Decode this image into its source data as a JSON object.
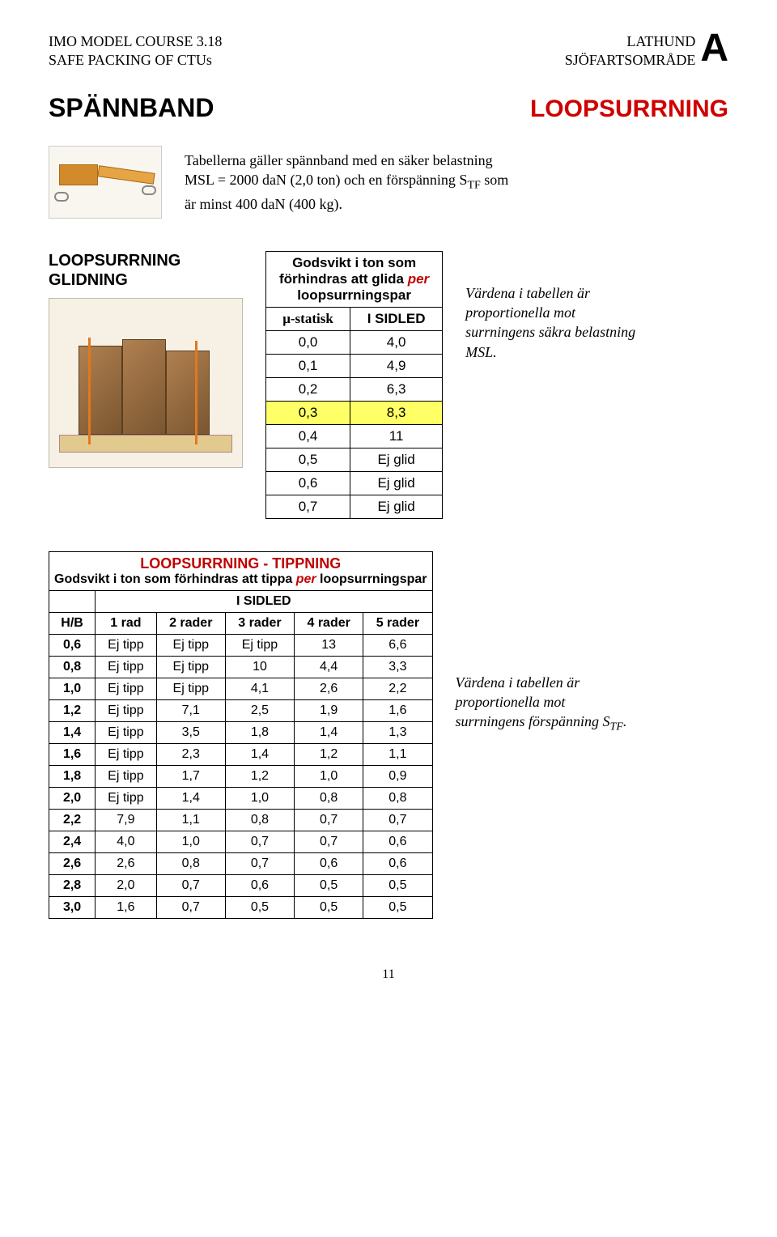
{
  "header": {
    "course_line1": "IMO MODEL COURSE 3.18",
    "course_line2": "SAFE PACKING OF CTUs",
    "lathund": "LATHUND",
    "area": "SJÖFARTSOMRÅDE",
    "big_letter": "A"
  },
  "titles": {
    "main": "SPÄNNBAND",
    "topic": "LOOPSURRNING"
  },
  "intro": {
    "l1": "Tabellerna gäller spännband med en säker belastning",
    "l2a": "MSL = 2000 daN (2,0 ton) och en förspänning S",
    "l2_sub": "TF",
    "l2b": " som",
    "l3": "är minst 400 daN (400 kg)."
  },
  "glid": {
    "section_title_l1": "LOOPSURRNING",
    "section_title_l2": "GLIDNING",
    "caption_l1": "Godsvikt i ton som",
    "caption_l2a": "förhindras att glida ",
    "caption_l2b": "per",
    "caption_l3": "loopsurrningspar",
    "col1": "μ-statisk",
    "col2": "I SIDLED",
    "rows": [
      {
        "m": "0,0",
        "v": "4,0"
      },
      {
        "m": "0,1",
        "v": "4,9"
      },
      {
        "m": "0,2",
        "v": "6,3"
      },
      {
        "m": "0,3",
        "v": "8,3"
      },
      {
        "m": "0,4",
        "v": "11"
      },
      {
        "m": "0,5",
        "v": "Ej glid"
      },
      {
        "m": "0,6",
        "v": "Ej glid"
      },
      {
        "m": "0,7",
        "v": "Ej glid"
      }
    ],
    "highlight_index": 3,
    "note": "Värdena i tabellen är proportionella mot surrningens säkra belastning MSL."
  },
  "tip": {
    "title": "LOOPSURRNING - TIPPNING",
    "sub_a": "Godsvikt i ton som förhindras att tippa ",
    "sub_b": "per",
    "sub_c": " loopsurrningspar",
    "band_header": "I SIDLED",
    "cols": [
      "H/B",
      "1 rad",
      "2 rader",
      "3 rader",
      "4 rader",
      "5 rader"
    ],
    "rows": [
      [
        "0,6",
        "Ej tipp",
        "Ej tipp",
        "Ej tipp",
        "13",
        "6,6"
      ],
      [
        "0,8",
        "Ej tipp",
        "Ej tipp",
        "10",
        "4,4",
        "3,3"
      ],
      [
        "1,0",
        "Ej tipp",
        "Ej tipp",
        "4,1",
        "2,6",
        "2,2"
      ],
      [
        "1,2",
        "Ej tipp",
        "7,1",
        "2,5",
        "1,9",
        "1,6"
      ],
      [
        "1,4",
        "Ej tipp",
        "3,5",
        "1,8",
        "1,4",
        "1,3"
      ],
      [
        "1,6",
        "Ej tipp",
        "2,3",
        "1,4",
        "1,2",
        "1,1"
      ],
      [
        "1,8",
        "Ej tipp",
        "1,7",
        "1,2",
        "1,0",
        "0,9"
      ],
      [
        "2,0",
        "Ej tipp",
        "1,4",
        "1,0",
        "0,8",
        "0,8"
      ],
      [
        "2,2",
        "7,9",
        "1,1",
        "0,8",
        "0,7",
        "0,7"
      ],
      [
        "2,4",
        "4,0",
        "1,0",
        "0,7",
        "0,7",
        "0,6"
      ],
      [
        "2,6",
        "2,6",
        "0,8",
        "0,7",
        "0,6",
        "0,6"
      ],
      [
        "2,8",
        "2,0",
        "0,7",
        "0,6",
        "0,5",
        "0,5"
      ],
      [
        "3,0",
        "1,6",
        "0,7",
        "0,5",
        "0,5",
        "0,5"
      ]
    ],
    "note_a": "Värdena i tabellen är proportionella mot surrningens förspänning S",
    "note_sub": "TF",
    "note_b": "."
  },
  "page_number": "11",
  "colors": {
    "red": "#c00000",
    "highlight": "#ffff66"
  }
}
